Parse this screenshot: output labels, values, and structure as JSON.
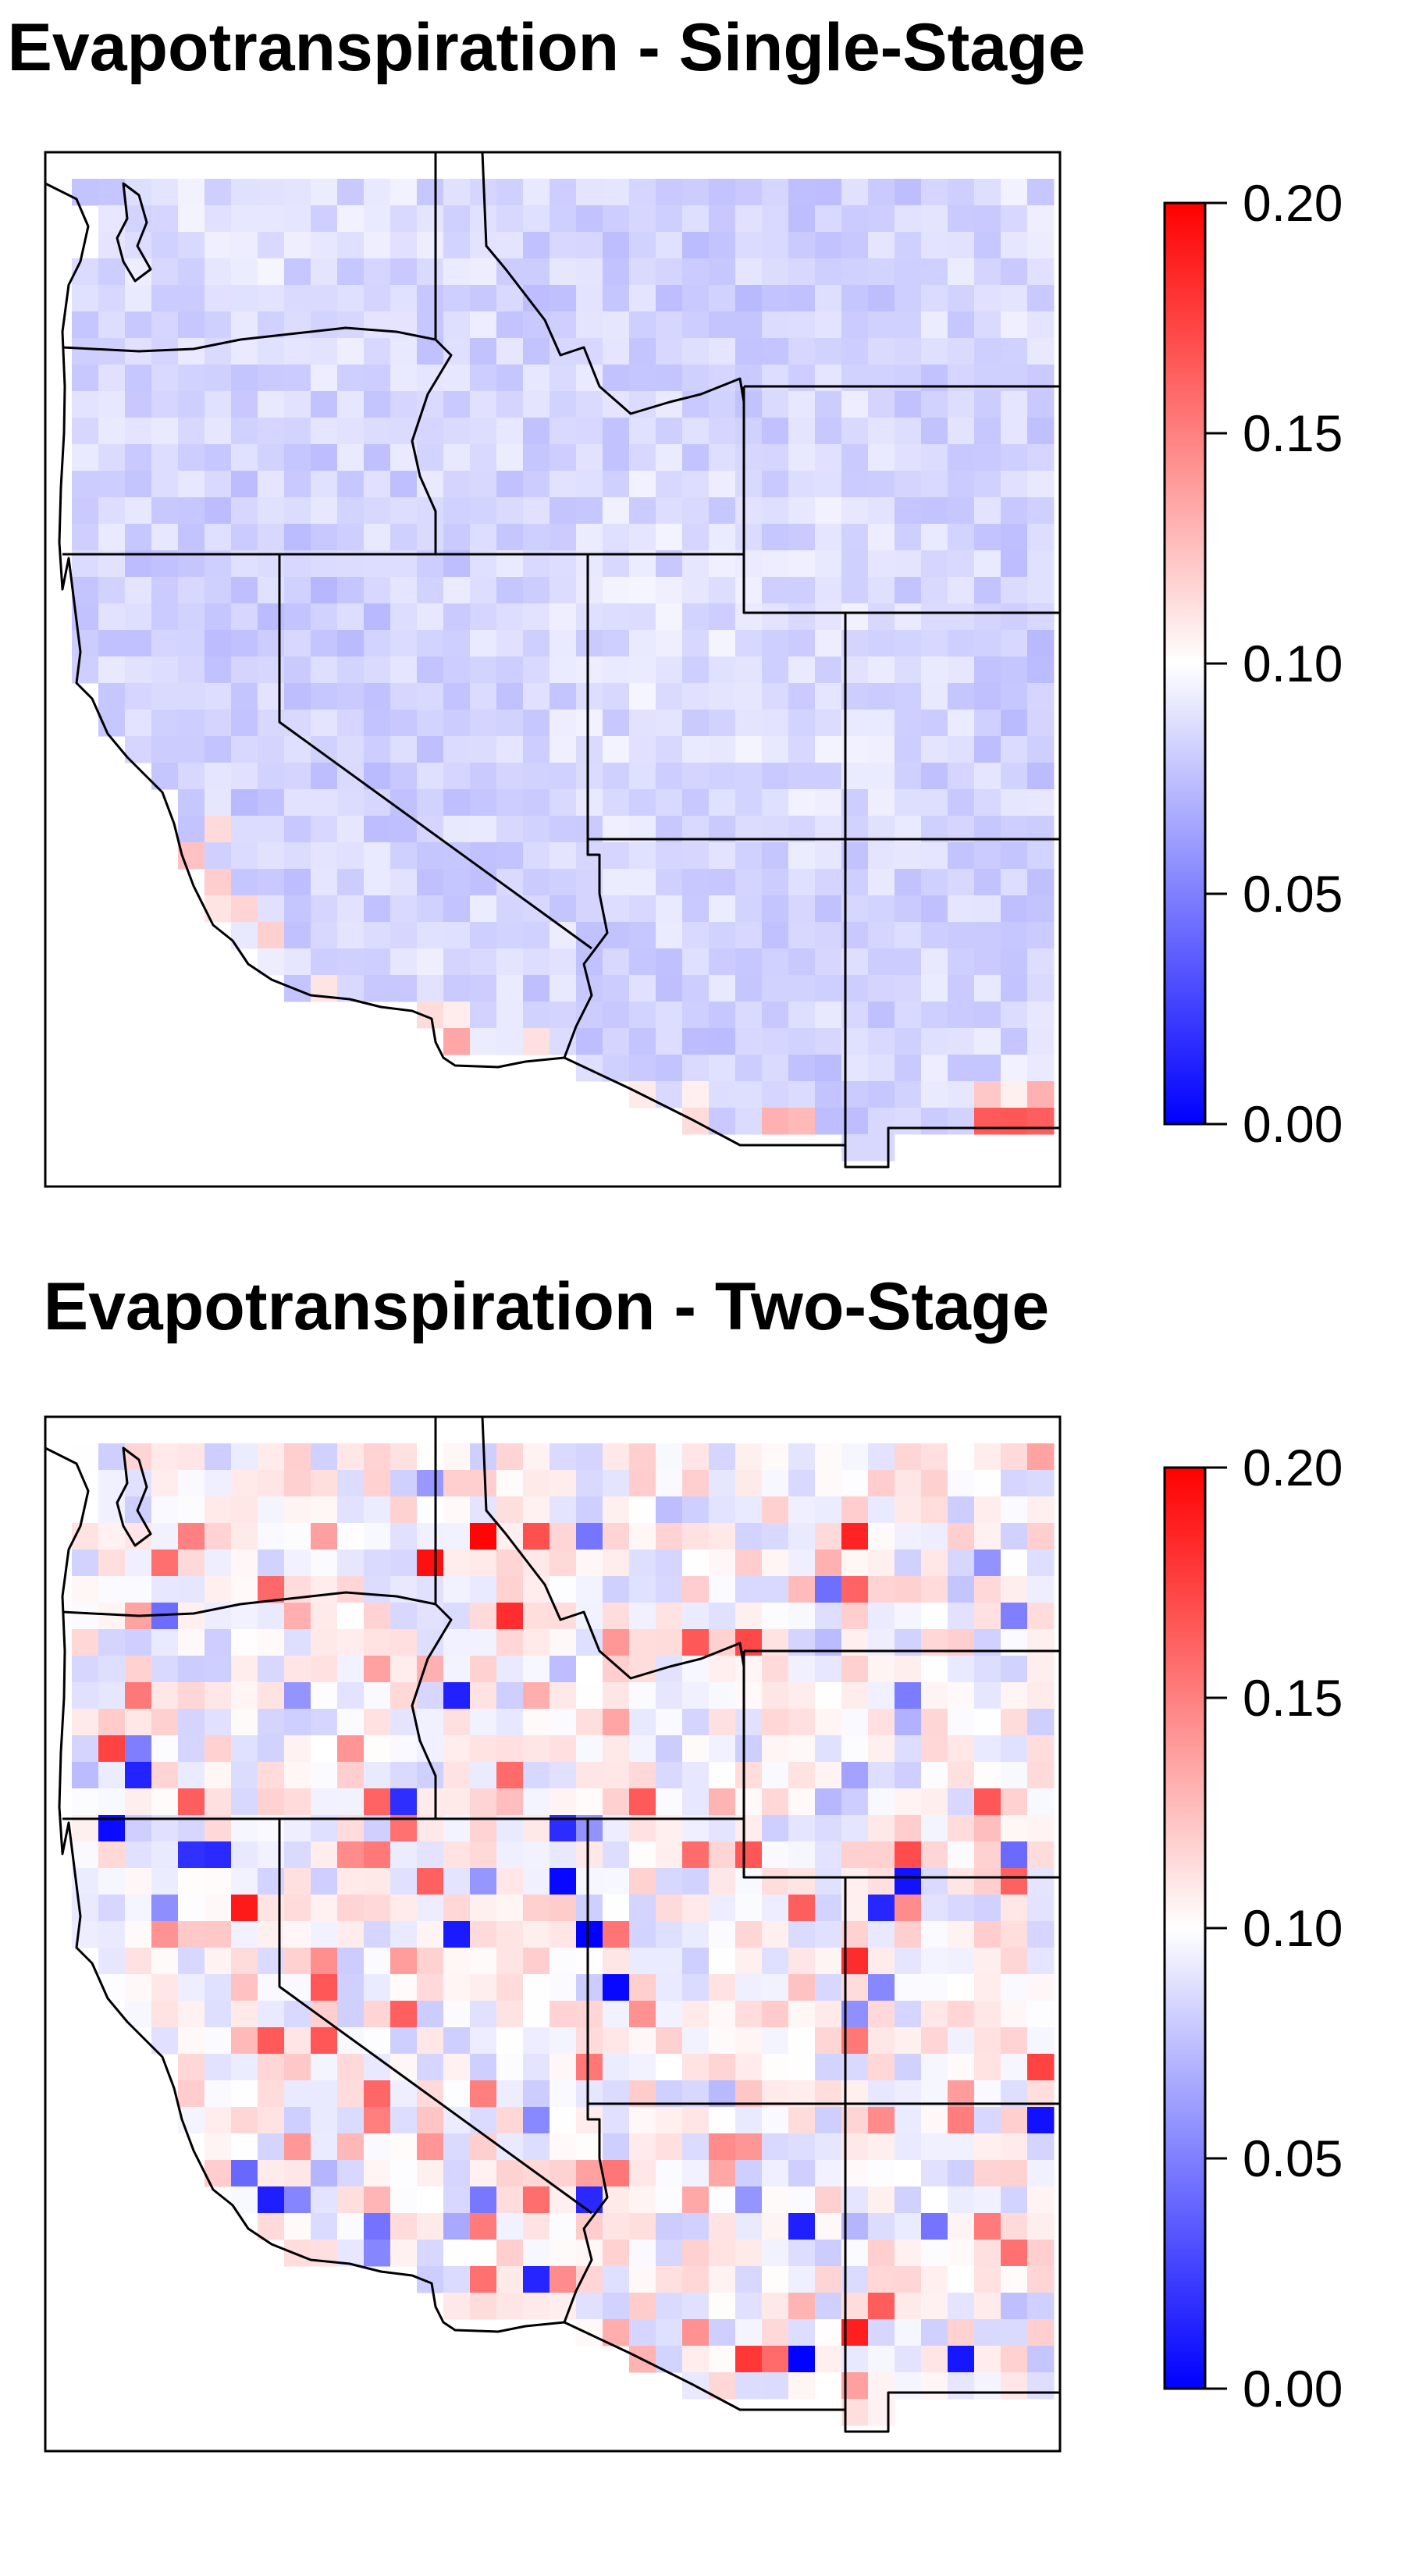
{
  "panels": [
    {
      "title": "Evapotranspiration - Single-Stage",
      "pattern": "smooth"
    },
    {
      "title": "Evapotranspiration - Two-Stage",
      "pattern": "noisy"
    }
  ],
  "colorbar": {
    "ticks": [
      "0.20",
      "0.15",
      "0.10",
      "0.05",
      "0.00"
    ],
    "tick_values": [
      0.2,
      0.15,
      0.1,
      0.05,
      0.0
    ],
    "min": 0.0,
    "max": 0.2,
    "low_color": "#0000ff",
    "mid_color": "#ffffff",
    "high_color": "#ff0000"
  },
  "chart_data": [
    {
      "type": "heatmap",
      "title": "Evapotranspiration - Single-Stage",
      "scale_min": 0.0,
      "scale_max": 0.2,
      "typical_value": 0.085,
      "region": "western United States"
    },
    {
      "type": "heatmap",
      "title": "Evapotranspiration - Two-Stage",
      "scale_min": 0.0,
      "scale_max": 0.2,
      "typical_value": 0.1,
      "region": "western United States"
    }
  ]
}
